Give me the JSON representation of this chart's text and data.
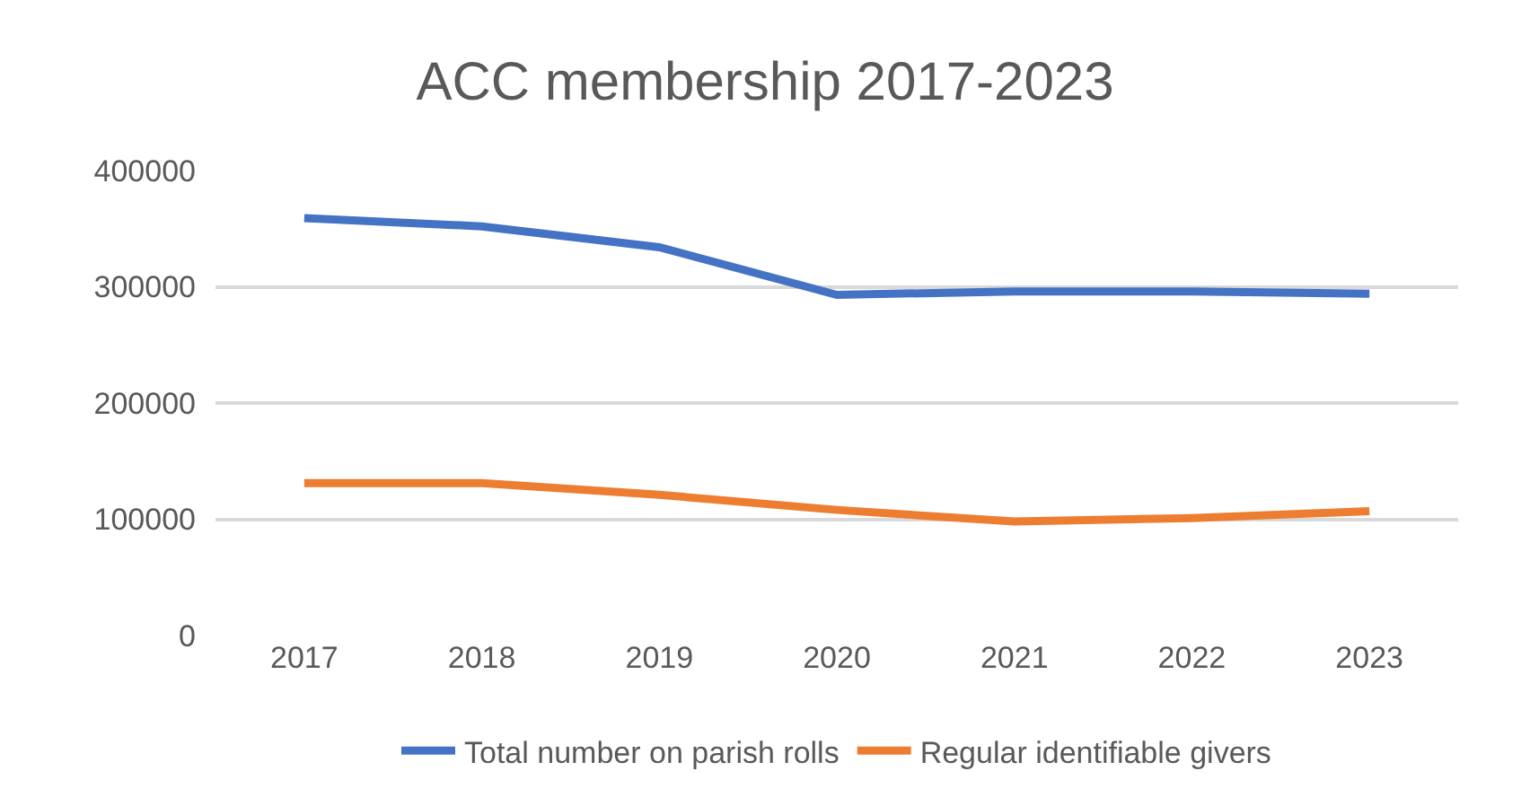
{
  "chart_data": {
    "type": "line",
    "title": "ACC membership 2017-2023",
    "categories": [
      "2017",
      "2018",
      "2019",
      "2020",
      "2021",
      "2022",
      "2023"
    ],
    "series": [
      {
        "name": "Total number on parish rolls",
        "color": "#4472c4",
        "values": [
          359000,
          352000,
          334000,
          293000,
          296000,
          296000,
          294000
        ]
      },
      {
        "name": "Regular identifiable givers",
        "color": "#ed7d31",
        "values": [
          131000,
          131000,
          121000,
          108000,
          98000,
          101000,
          107000
        ]
      }
    ],
    "ylim": [
      0,
      400000
    ],
    "yticks": [
      0,
      100000,
      200000,
      300000,
      400000
    ],
    "grid": "y",
    "legend": "bottom",
    "marker": "none",
    "line_style": "solid"
  }
}
